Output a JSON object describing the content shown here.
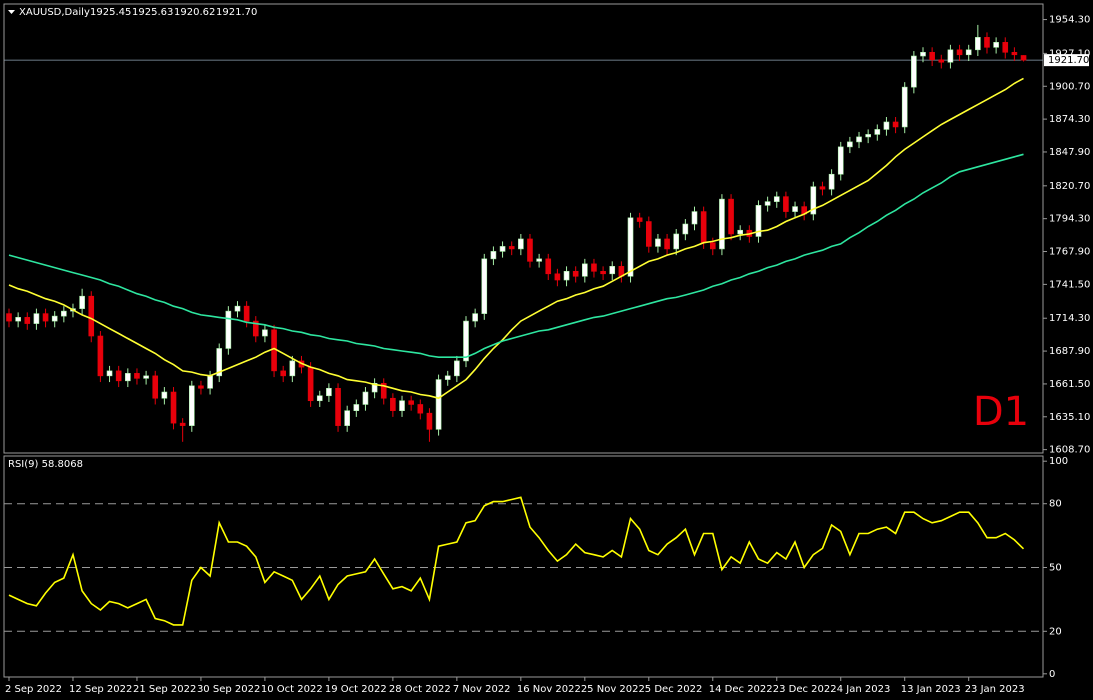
{
  "chart_data": [
    {
      "type": "candlestick",
      "title": "XAUUSD,Daily",
      "header_values": [
        "1925.45",
        "1925.63",
        "1920.62",
        "1921.70"
      ],
      "annotation": "D1",
      "categories": [
        "2 Sep 2022",
        null,
        null,
        null,
        null,
        null,
        null,
        "12 Sep 2022",
        null,
        null,
        null,
        null,
        null,
        null,
        "21 Sep 2022",
        null,
        null,
        null,
        null,
        null,
        null,
        "30 Sep 2022",
        null,
        null,
        null,
        null,
        null,
        null,
        "10 Oct 2022",
        null,
        null,
        null,
        null,
        null,
        null,
        "19 Oct 2022",
        null,
        null,
        null,
        null,
        null,
        null,
        "28 Oct 2022",
        null,
        null,
        null,
        null,
        null,
        null,
        "7 Nov 2022",
        null,
        null,
        null,
        null,
        null,
        null,
        "16 Nov 2022",
        null,
        null,
        null,
        null,
        null,
        null,
        "25 Nov 2022",
        null,
        null,
        null,
        null,
        null,
        null,
        "5 Dec 2022",
        null,
        null,
        null,
        null,
        null,
        null,
        "14 Dec 2022",
        null,
        null,
        null,
        null,
        null,
        null,
        "23 Dec 2022",
        null,
        null,
        null,
        null,
        null,
        null,
        "4 Jan 2023",
        null,
        null,
        null,
        null,
        null,
        null,
        "13 Jan 2023",
        null,
        null,
        null,
        null,
        null,
        null,
        "23 Jan 2023",
        null,
        null,
        null,
        null,
        null,
        null
      ],
      "open": [
        1718,
        1712,
        1715,
        1710,
        1718,
        1712,
        1716,
        1720,
        1722,
        1732,
        1700,
        1668,
        1672,
        1664,
        1670,
        1666,
        1668,
        1650,
        1655,
        1630,
        1628,
        1660,
        1658,
        1668,
        1690,
        1720,
        1724,
        1712,
        1700,
        1705,
        1672,
        1668,
        1680,
        1675,
        1648,
        1652,
        1658,
        1628,
        1640,
        1645,
        1655,
        1662,
        1650,
        1640,
        1648,
        1645,
        1638,
        1625,
        1665,
        1668,
        1680,
        1712,
        1718,
        1762,
        1768,
        1772,
        1770,
        1778,
        1760,
        1762,
        1750,
        1745,
        1752,
        1748,
        1758,
        1752,
        1750,
        1756,
        1748,
        1795,
        1792,
        1772,
        1778,
        1770,
        1782,
        1790,
        1800,
        1775,
        1770,
        1810,
        1782,
        1785,
        1780,
        1805,
        1808,
        1812,
        1800,
        1804,
        1798,
        1820,
        1818,
        1830,
        1852,
        1856,
        1860,
        1862,
        1866,
        1872,
        1868,
        1900,
        1925,
        1928,
        1922,
        1920,
        1930,
        1926,
        1930,
        1940,
        1932,
        1936,
        1928,
        1925.45
      ],
      "high": [
        1722,
        1719,
        1719,
        1722,
        1722,
        1720,
        1724,
        1726,
        1738,
        1736,
        1704,
        1676,
        1676,
        1674,
        1674,
        1672,
        1672,
        1659,
        1659,
        1634,
        1664,
        1664,
        1672,
        1694,
        1724,
        1728,
        1728,
        1716,
        1709,
        1709,
        1676,
        1684,
        1684,
        1679,
        1656,
        1662,
        1662,
        1644,
        1649,
        1659,
        1666,
        1666,
        1654,
        1652,
        1652,
        1649,
        1642,
        1669,
        1672,
        1684,
        1716,
        1722,
        1766,
        1772,
        1776,
        1776,
        1782,
        1782,
        1766,
        1766,
        1754,
        1756,
        1756,
        1762,
        1762,
        1756,
        1760,
        1760,
        1799,
        1799,
        1796,
        1782,
        1782,
        1786,
        1794,
        1804,
        1804,
        1779,
        1814,
        1814,
        1789,
        1789,
        1809,
        1812,
        1816,
        1816,
        1808,
        1808,
        1824,
        1824,
        1834,
        1856,
        1860,
        1864,
        1866,
        1870,
        1876,
        1876,
        1904,
        1929,
        1932,
        1932,
        1926,
        1934,
        1934,
        1934,
        1950,
        1944,
        1940,
        1940,
        1932,
        1925.63
      ],
      "low": [
        1707,
        1707,
        1705,
        1705,
        1707,
        1707,
        1711,
        1715,
        1717,
        1695,
        1663,
        1663,
        1659,
        1659,
        1661,
        1661,
        1645,
        1645,
        1625,
        1615,
        1623,
        1653,
        1653,
        1663,
        1685,
        1715,
        1707,
        1695,
        1695,
        1667,
        1663,
        1663,
        1670,
        1643,
        1643,
        1647,
        1623,
        1623,
        1635,
        1640,
        1650,
        1645,
        1635,
        1635,
        1640,
        1633,
        1615,
        1620,
        1660,
        1663,
        1675,
        1707,
        1713,
        1757,
        1763,
        1765,
        1765,
        1755,
        1755,
        1745,
        1740,
        1740,
        1743,
        1743,
        1747,
        1745,
        1745,
        1743,
        1743,
        1787,
        1767,
        1767,
        1765,
        1765,
        1777,
        1785,
        1770,
        1765,
        1765,
        1777,
        1777,
        1775,
        1775,
        1800,
        1803,
        1795,
        1795,
        1793,
        1793,
        1813,
        1813,
        1825,
        1847,
        1851,
        1855,
        1857,
        1861,
        1863,
        1863,
        1895,
        1920,
        1917,
        1915,
        1915,
        1921,
        1921,
        1925,
        1927,
        1927,
        1923,
        1921,
        1920.62
      ],
      "close": [
        1712,
        1715,
        1710,
        1718,
        1712,
        1716,
        1720,
        1722,
        1732,
        1700,
        1668,
        1672,
        1664,
        1670,
        1666,
        1668,
        1650,
        1655,
        1630,
        1628,
        1660,
        1658,
        1668,
        1690,
        1720,
        1724,
        1712,
        1700,
        1705,
        1672,
        1668,
        1680,
        1675,
        1648,
        1652,
        1658,
        1628,
        1640,
        1645,
        1655,
        1662,
        1650,
        1640,
        1648,
        1645,
        1638,
        1625,
        1665,
        1668,
        1680,
        1712,
        1718,
        1762,
        1768,
        1772,
        1770,
        1778,
        1760,
        1762,
        1750,
        1745,
        1752,
        1748,
        1758,
        1752,
        1750,
        1756,
        1748,
        1795,
        1792,
        1772,
        1778,
        1770,
        1782,
        1790,
        1800,
        1775,
        1770,
        1810,
        1782,
        1785,
        1780,
        1805,
        1808,
        1812,
        1800,
        1804,
        1798,
        1820,
        1818,
        1830,
        1852,
        1856,
        1860,
        1862,
        1866,
        1872,
        1868,
        1900,
        1925,
        1928,
        1922,
        1920,
        1930,
        1926,
        1930,
        1940,
        1932,
        1936,
        1928,
        1926,
        1921.7
      ],
      "up_color": "#ffffff",
      "up_wick_color": "#a8f0a8",
      "down_color": "#e8000b",
      "down_wick_color": "#e8000b",
      "series": [
        {
          "color": "#ffff33",
          "values": [
            1741,
            1738,
            1736,
            1733,
            1730,
            1728,
            1725,
            1721,
            1717,
            1714,
            1710,
            1706,
            1702,
            1698,
            1694,
            1690,
            1686,
            1681,
            1677,
            1672,
            1671,
            1669,
            1668,
            1671,
            1674,
            1677,
            1680,
            1683,
            1687,
            1690,
            1686,
            1682,
            1678,
            1675,
            1673,
            1670,
            1668,
            1665,
            1664,
            1663,
            1661,
            1660,
            1658,
            1656,
            1655,
            1653,
            1652,
            1650,
            1655,
            1660,
            1665,
            1673,
            1682,
            1690,
            1697,
            1705,
            1712,
            1716,
            1720,
            1724,
            1728,
            1730,
            1733,
            1735,
            1738,
            1740,
            1744,
            1748,
            1752,
            1756,
            1760,
            1762,
            1765,
            1767,
            1770,
            1772,
            1775,
            1776,
            1778,
            1779,
            1781,
            1782,
            1784,
            1785,
            1788,
            1792,
            1795,
            1798,
            1802,
            1805,
            1809,
            1813,
            1817,
            1821,
            1825,
            1831,
            1837,
            1844,
            1850,
            1855,
            1860,
            1865,
            1870,
            1874,
            1878,
            1882,
            1886,
            1890,
            1894,
            1898,
            1903,
            1907
          ]
        },
        {
          "color": "#2ee6a0",
          "values": [
            1765,
            1763,
            1761,
            1759,
            1757,
            1755,
            1753,
            1751,
            1749,
            1747,
            1745,
            1742,
            1740,
            1737,
            1734,
            1732,
            1729,
            1727,
            1724,
            1722,
            1719,
            1717,
            1716,
            1715,
            1714,
            1713,
            1711,
            1710,
            1709,
            1707,
            1706,
            1704,
            1703,
            1701,
            1700,
            1698,
            1697,
            1696,
            1694,
            1693,
            1692,
            1690,
            1689,
            1688,
            1687,
            1686,
            1684,
            1683,
            1683,
            1683,
            1683,
            1686,
            1690,
            1693,
            1696,
            1698,
            1700,
            1702,
            1704,
            1705,
            1707,
            1709,
            1711,
            1713,
            1715,
            1716,
            1718,
            1720,
            1722,
            1724,
            1726,
            1728,
            1730,
            1731,
            1733,
            1735,
            1737,
            1740,
            1742,
            1745,
            1747,
            1750,
            1752,
            1755,
            1757,
            1760,
            1762,
            1765,
            1767,
            1769,
            1772,
            1774,
            1779,
            1783,
            1788,
            1792,
            1797,
            1801,
            1806,
            1810,
            1815,
            1819,
            1823,
            1828,
            1832,
            1834,
            1836,
            1838,
            1840,
            1842,
            1844,
            1846
          ]
        }
      ],
      "price_label": {
        "value": 1921.7,
        "label": "1921.70"
      },
      "ylim": [
        1606,
        1966
      ],
      "yticks": [
        {
          "value": 1954.3,
          "label": "1954.30"
        },
        {
          "value": 1927.1,
          "label": "1927.10"
        },
        {
          "value": 1900.7,
          "label": "1900.70"
        },
        {
          "value": 1874.3,
          "label": "1874.30"
        },
        {
          "value": 1847.9,
          "label": "1847.90"
        },
        {
          "value": 1820.7,
          "label": "1820.70"
        },
        {
          "value": 1794.3,
          "label": "1794.30"
        },
        {
          "value": 1767.9,
          "label": "1767.90"
        },
        {
          "value": 1741.5,
          "label": "1741.50"
        },
        {
          "value": 1714.3,
          "label": "1714.30"
        },
        {
          "value": 1687.9,
          "label": "1687.90"
        },
        {
          "value": 1661.5,
          "label": "1661.50"
        },
        {
          "value": 1635.1,
          "label": "1635.10"
        },
        {
          "value": 1608.7,
          "label": "1608.70"
        }
      ]
    },
    {
      "type": "line",
      "title": "RSI(9) 58.8068",
      "series": [
        {
          "color": "#ffff00",
          "values": [
            37,
            35,
            33,
            32,
            38,
            43,
            45,
            56,
            39,
            33,
            30,
            34,
            33,
            31,
            33,
            35,
            26,
            25,
            23,
            23,
            44,
            50,
            46,
            71,
            62,
            62,
            60,
            55,
            43,
            48,
            46,
            44,
            35,
            40,
            46,
            35,
            42,
            46,
            47,
            48,
            54,
            47,
            40,
            41,
            39,
            45,
            35,
            60,
            61,
            62,
            71,
            72,
            79,
            81,
            81,
            82,
            83,
            69,
            64,
            58,
            53,
            56,
            61,
            57,
            56,
            55,
            58,
            55,
            73,
            68,
            58,
            56,
            61,
            64,
            68,
            56,
            66,
            66,
            49,
            55,
            52,
            62,
            54,
            52,
            57,
            54,
            62,
            50,
            56,
            59,
            70,
            67,
            56,
            66,
            66,
            68,
            69,
            66,
            76,
            76,
            73,
            71,
            72,
            74,
            76,
            76,
            71,
            64,
            64,
            66,
            63,
            58.8068
          ]
        }
      ],
      "ylim": [
        -1.5,
        101.5
      ],
      "yticks": [
        100,
        80,
        50,
        20,
        0
      ]
    }
  ]
}
